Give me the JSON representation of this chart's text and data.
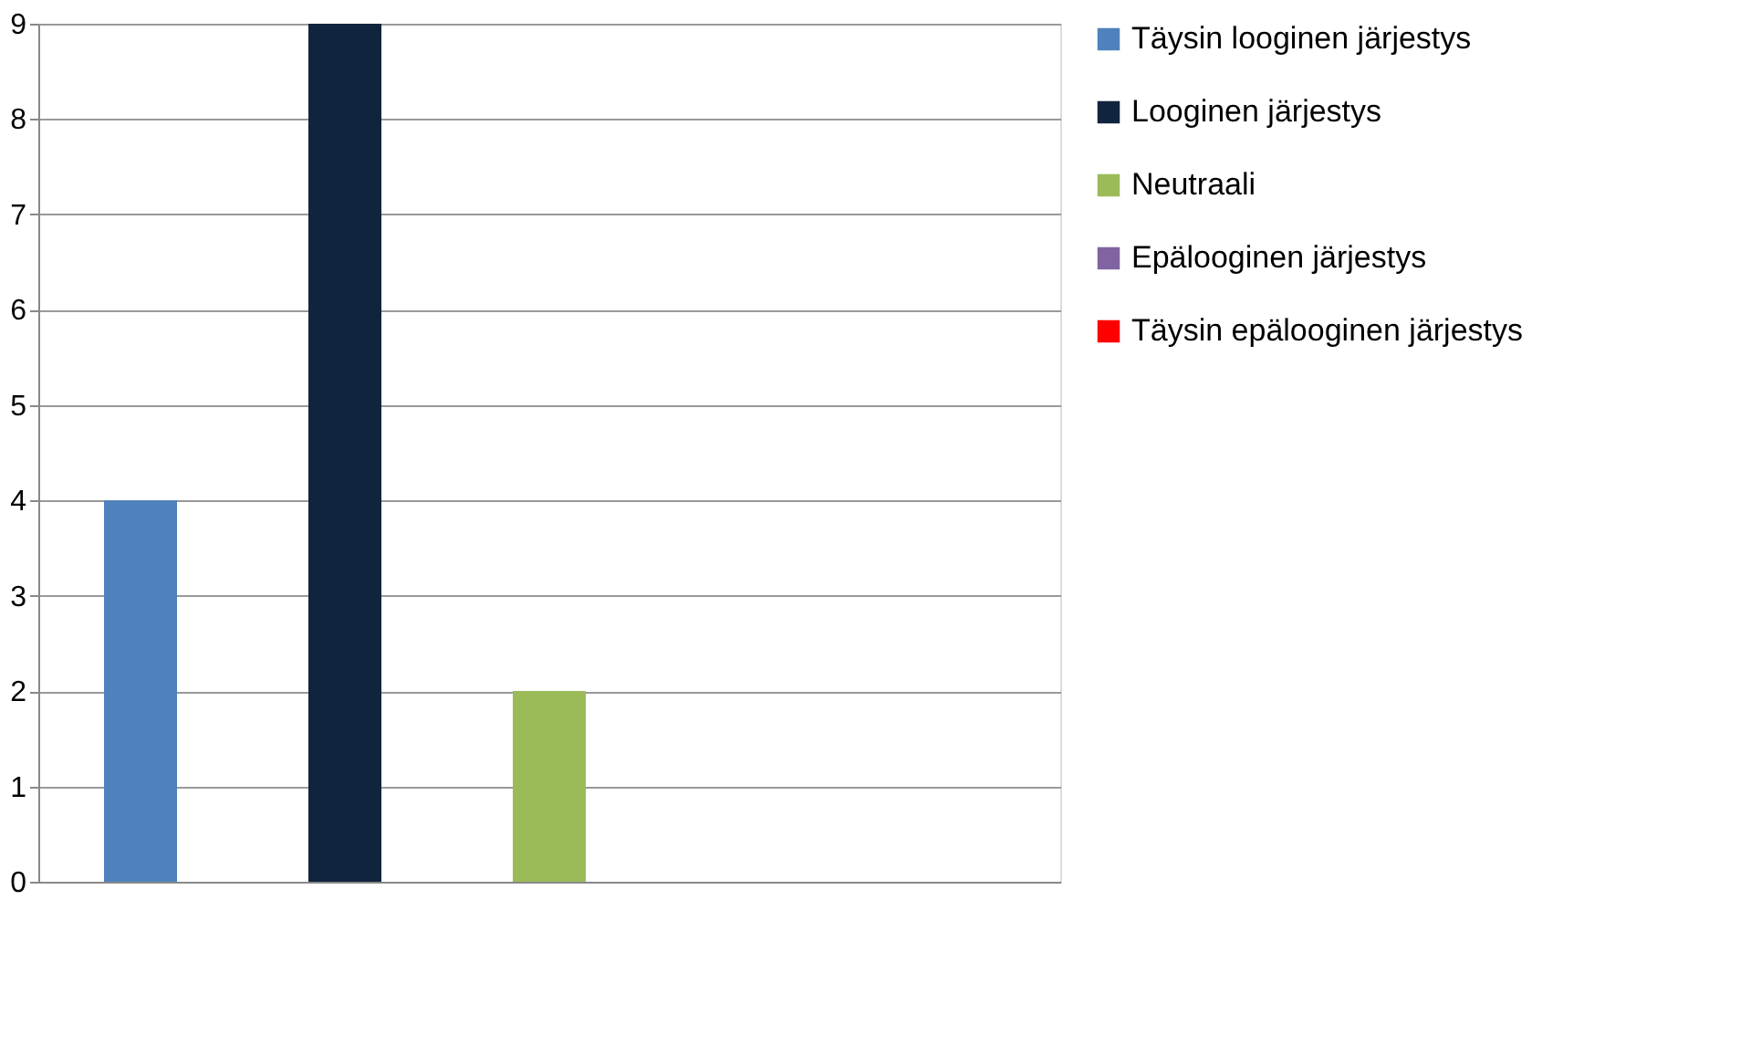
{
  "chart_data": {
    "type": "bar",
    "categories": [
      null
    ],
    "series": [
      {
        "name": "Täysin looginen järjestys",
        "color": "#4f81bd",
        "values": [
          4
        ]
      },
      {
        "name": "Looginen järjestys",
        "color": "#10243e",
        "values": [
          9
        ]
      },
      {
        "name": "Neutraali",
        "color": "#9bbb59",
        "values": [
          2
        ]
      },
      {
        "name": "Epälooginen järjestys",
        "color": "#8064a2",
        "values": [
          0
        ]
      },
      {
        "name": "Täysin epälooginen järjestys",
        "color": "#ff0000",
        "values": [
          0
        ]
      }
    ],
    "ylim": [
      0,
      9
    ],
    "yticks": [
      0,
      1,
      2,
      3,
      4,
      5,
      6,
      7,
      8,
      9
    ],
    "grid": "y",
    "legend": "right",
    "tick_labels": "y"
  }
}
